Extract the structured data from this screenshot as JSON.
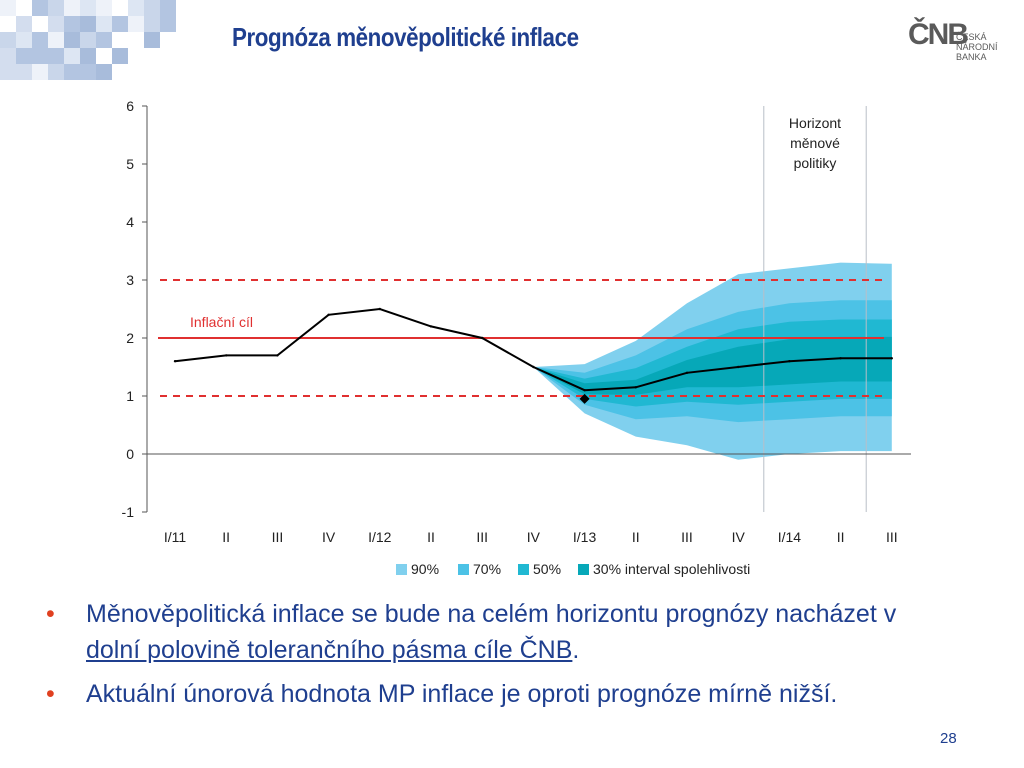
{
  "header": {
    "title": "Prognóza měnověpolitické inflace",
    "logo": {
      "mark": "ČNB",
      "line1": "ČESKÁ",
      "line2": "NÁRODNÍ BANKA"
    }
  },
  "chart_data": {
    "type": "area",
    "title": "",
    "xlabel": "",
    "ylabel": "",
    "categories": [
      "I/11",
      "II",
      "III",
      "IV",
      "I/12",
      "II",
      "III",
      "IV",
      "I/13",
      "II",
      "III",
      "IV",
      "I/14",
      "II",
      "III"
    ],
    "ylim": [
      -1,
      6
    ],
    "yticks": [
      "-1",
      "0",
      "1",
      "2",
      "3",
      "4",
      "5",
      "6"
    ],
    "grid": false,
    "legend_position": "bottom",
    "series": [
      {
        "name": "",
        "type": "line",
        "color": "#000000",
        "values": [
          1.6,
          1.7,
          1.7,
          2.4,
          2.5,
          2.2,
          2.0,
          1.5,
          1.1,
          1.15,
          1.4,
          1.5,
          1.6,
          1.65,
          1.65
        ]
      }
    ],
    "actual_point": {
      "x": "I/13",
      "value": 0.95
    },
    "fan": {
      "start_index": 7,
      "bands": [
        {
          "name": "90%",
          "color": "#80d0ee",
          "lower": [
            1.5,
            0.7,
            0.3,
            0.15,
            -0.1,
            0.0,
            0.05,
            0.05
          ],
          "upper": [
            1.5,
            1.55,
            1.95,
            2.6,
            3.1,
            3.2,
            3.3,
            3.28
          ]
        },
        {
          "name": "70%",
          "color": "#4cc2e6",
          "lower": [
            1.5,
            0.85,
            0.6,
            0.65,
            0.55,
            0.6,
            0.65,
            0.65
          ],
          "upper": [
            1.5,
            1.4,
            1.7,
            2.15,
            2.45,
            2.6,
            2.65,
            2.65
          ]
        },
        {
          "name": "50%",
          "color": "#20b8d2",
          "lower": [
            1.5,
            0.95,
            0.82,
            0.9,
            0.85,
            0.9,
            0.95,
            0.95
          ],
          "upper": [
            1.5,
            1.3,
            1.48,
            1.85,
            2.15,
            2.28,
            2.32,
            2.32
          ]
        },
        {
          "name": "30% interval spolehlivosti",
          "color": "#06a8b8",
          "lower": [
            1.5,
            1.03,
            1.02,
            1.15,
            1.15,
            1.2,
            1.25,
            1.25
          ],
          "upper": [
            1.5,
            1.22,
            1.28,
            1.62,
            1.85,
            1.98,
            2.02,
            2.02
          ]
        }
      ]
    },
    "target": {
      "value": 2,
      "label": "Inflační cíl",
      "color": "#e03030"
    },
    "tolerance_band": [
      1,
      3
    ],
    "horizon": {
      "label_lines": [
        "Horizont",
        "měnové",
        "politiky"
      ],
      "from_index": 11.5,
      "to_index": 13.5
    }
  },
  "bullets": [
    {
      "text": "Měnověpolitická inflace se bude na celém horizontu prognózy nacházet v ",
      "underlined": "dolní polovině tolerančního pásma cíle ČNB",
      "tail": "."
    },
    {
      "text": "Aktuální únorová hodnota MP inflace je oproti prognóze mírně nižší.",
      "underlined": "",
      "tail": ""
    }
  ],
  "bullet_marker": "•",
  "page_number": "28"
}
